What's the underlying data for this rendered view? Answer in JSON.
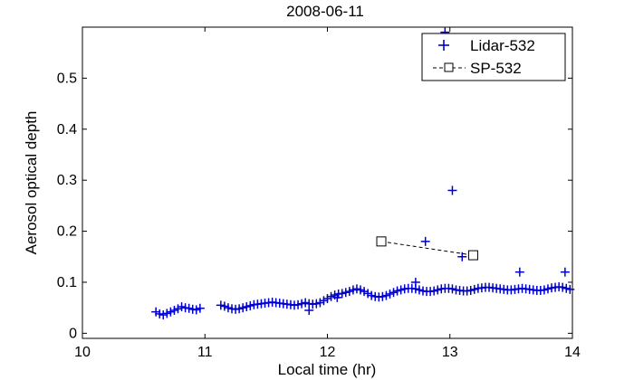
{
  "chart_data": {
    "type": "scatter",
    "title": "2008-06-11",
    "xlabel": "Local time (hr)",
    "ylabel": "Aerosol optical depth",
    "xlim": [
      10,
      14
    ],
    "ylim": [
      -0.01,
      0.6
    ],
    "x_ticks": [
      10,
      11,
      12,
      13,
      14
    ],
    "y_ticks": [
      0,
      0.1,
      0.2,
      0.3,
      0.4,
      0.5
    ],
    "x_tick_labels": [
      "10",
      "11",
      "12",
      "13",
      "14"
    ],
    "y_tick_labels": [
      "0",
      "0.1",
      "0.2",
      "0.3",
      "0.4",
      "0.5"
    ],
    "grid": false,
    "legend_position": "top-right",
    "series": [
      {
        "name": "Lidar-532",
        "marker": "plus",
        "line": "none",
        "color": "#0000cc",
        "x": [
          10.6,
          10.63,
          10.66,
          10.69,
          10.72,
          10.75,
          10.78,
          10.81,
          10.84,
          10.87,
          10.9,
          10.93,
          10.96,
          11.13,
          11.16,
          11.19,
          11.22,
          11.25,
          11.28,
          11.31,
          11.34,
          11.37,
          11.4,
          11.43,
          11.46,
          11.49,
          11.52,
          11.55,
          11.58,
          11.61,
          11.64,
          11.67,
          11.7,
          11.73,
          11.76,
          11.79,
          11.82,
          11.85,
          11.88,
          11.91,
          11.94,
          11.97,
          12.0,
          12.03,
          12.06,
          12.09,
          12.12,
          12.15,
          12.18,
          12.21,
          12.24,
          12.27,
          12.3,
          12.33,
          12.36,
          12.39,
          12.42,
          12.45,
          12.48,
          12.51,
          12.54,
          12.57,
          12.6,
          12.63,
          12.66,
          12.69,
          12.72,
          12.75,
          12.78,
          12.81,
          12.84,
          12.87,
          12.9,
          12.93,
          12.96,
          12.99,
          13.02,
          13.05,
          13.08,
          13.11,
          13.14,
          13.17,
          13.2,
          13.23,
          13.26,
          13.29,
          13.32,
          13.35,
          13.38,
          13.41,
          13.44,
          13.47,
          13.5,
          13.53,
          13.56,
          13.59,
          13.62,
          13.65,
          13.68,
          13.71,
          13.74,
          13.77,
          13.8,
          13.83,
          13.86,
          13.89,
          13.92,
          13.95,
          13.98,
          11.85,
          12.08,
          12.72,
          12.8,
          12.96,
          13.02,
          13.1,
          13.57,
          13.94
        ],
        "y": [
          0.042,
          0.038,
          0.036,
          0.039,
          0.042,
          0.045,
          0.048,
          0.052,
          0.05,
          0.049,
          0.047,
          0.046,
          0.049,
          0.055,
          0.053,
          0.05,
          0.048,
          0.047,
          0.048,
          0.05,
          0.052,
          0.054,
          0.056,
          0.057,
          0.058,
          0.059,
          0.06,
          0.061,
          0.06,
          0.059,
          0.058,
          0.057,
          0.056,
          0.055,
          0.056,
          0.058,
          0.06,
          0.058,
          0.057,
          0.058,
          0.06,
          0.064,
          0.068,
          0.072,
          0.075,
          0.077,
          0.078,
          0.08,
          0.082,
          0.085,
          0.087,
          0.085,
          0.082,
          0.078,
          0.074,
          0.072,
          0.071,
          0.072,
          0.074,
          0.077,
          0.08,
          0.083,
          0.085,
          0.087,
          0.088,
          0.088,
          0.087,
          0.085,
          0.083,
          0.082,
          0.082,
          0.083,
          0.085,
          0.087,
          0.088,
          0.088,
          0.087,
          0.085,
          0.084,
          0.083,
          0.083,
          0.084,
          0.086,
          0.088,
          0.089,
          0.09,
          0.09,
          0.089,
          0.088,
          0.087,
          0.086,
          0.085,
          0.085,
          0.086,
          0.087,
          0.088,
          0.087,
          0.086,
          0.085,
          0.084,
          0.084,
          0.085,
          0.087,
          0.089,
          0.09,
          0.091,
          0.09,
          0.088,
          0.086,
          0.045,
          0.07,
          0.1,
          0.18,
          0.59,
          0.28,
          0.15,
          0.12,
          0.12
        ]
      },
      {
        "name": "SP-532",
        "marker": "square",
        "line": "dashed",
        "color": "#000000",
        "x": [
          12.44,
          13.19
        ],
        "y": [
          0.18,
          0.153
        ]
      }
    ]
  }
}
